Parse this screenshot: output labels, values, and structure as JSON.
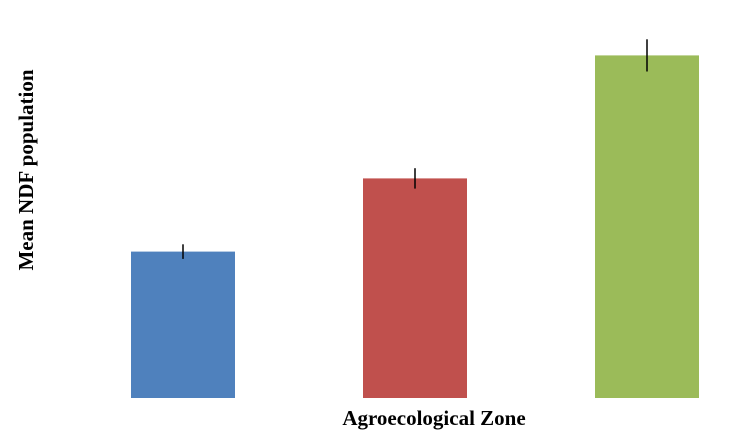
{
  "chart_data": {
    "type": "bar",
    "categories": [
      "",
      "",
      ""
    ],
    "values": [
      1.0,
      1.5,
      2.34
    ],
    "error": [
      0.05,
      0.07,
      0.11
    ],
    "colors": [
      "#4F81BD",
      "#C0504D",
      "#9BBB59"
    ],
    "xlabel": "Agroecological Zone",
    "ylabel": "Mean NDF population",
    "ylim": [
      0,
      2.5
    ],
    "grid": false,
    "legend": "none"
  }
}
